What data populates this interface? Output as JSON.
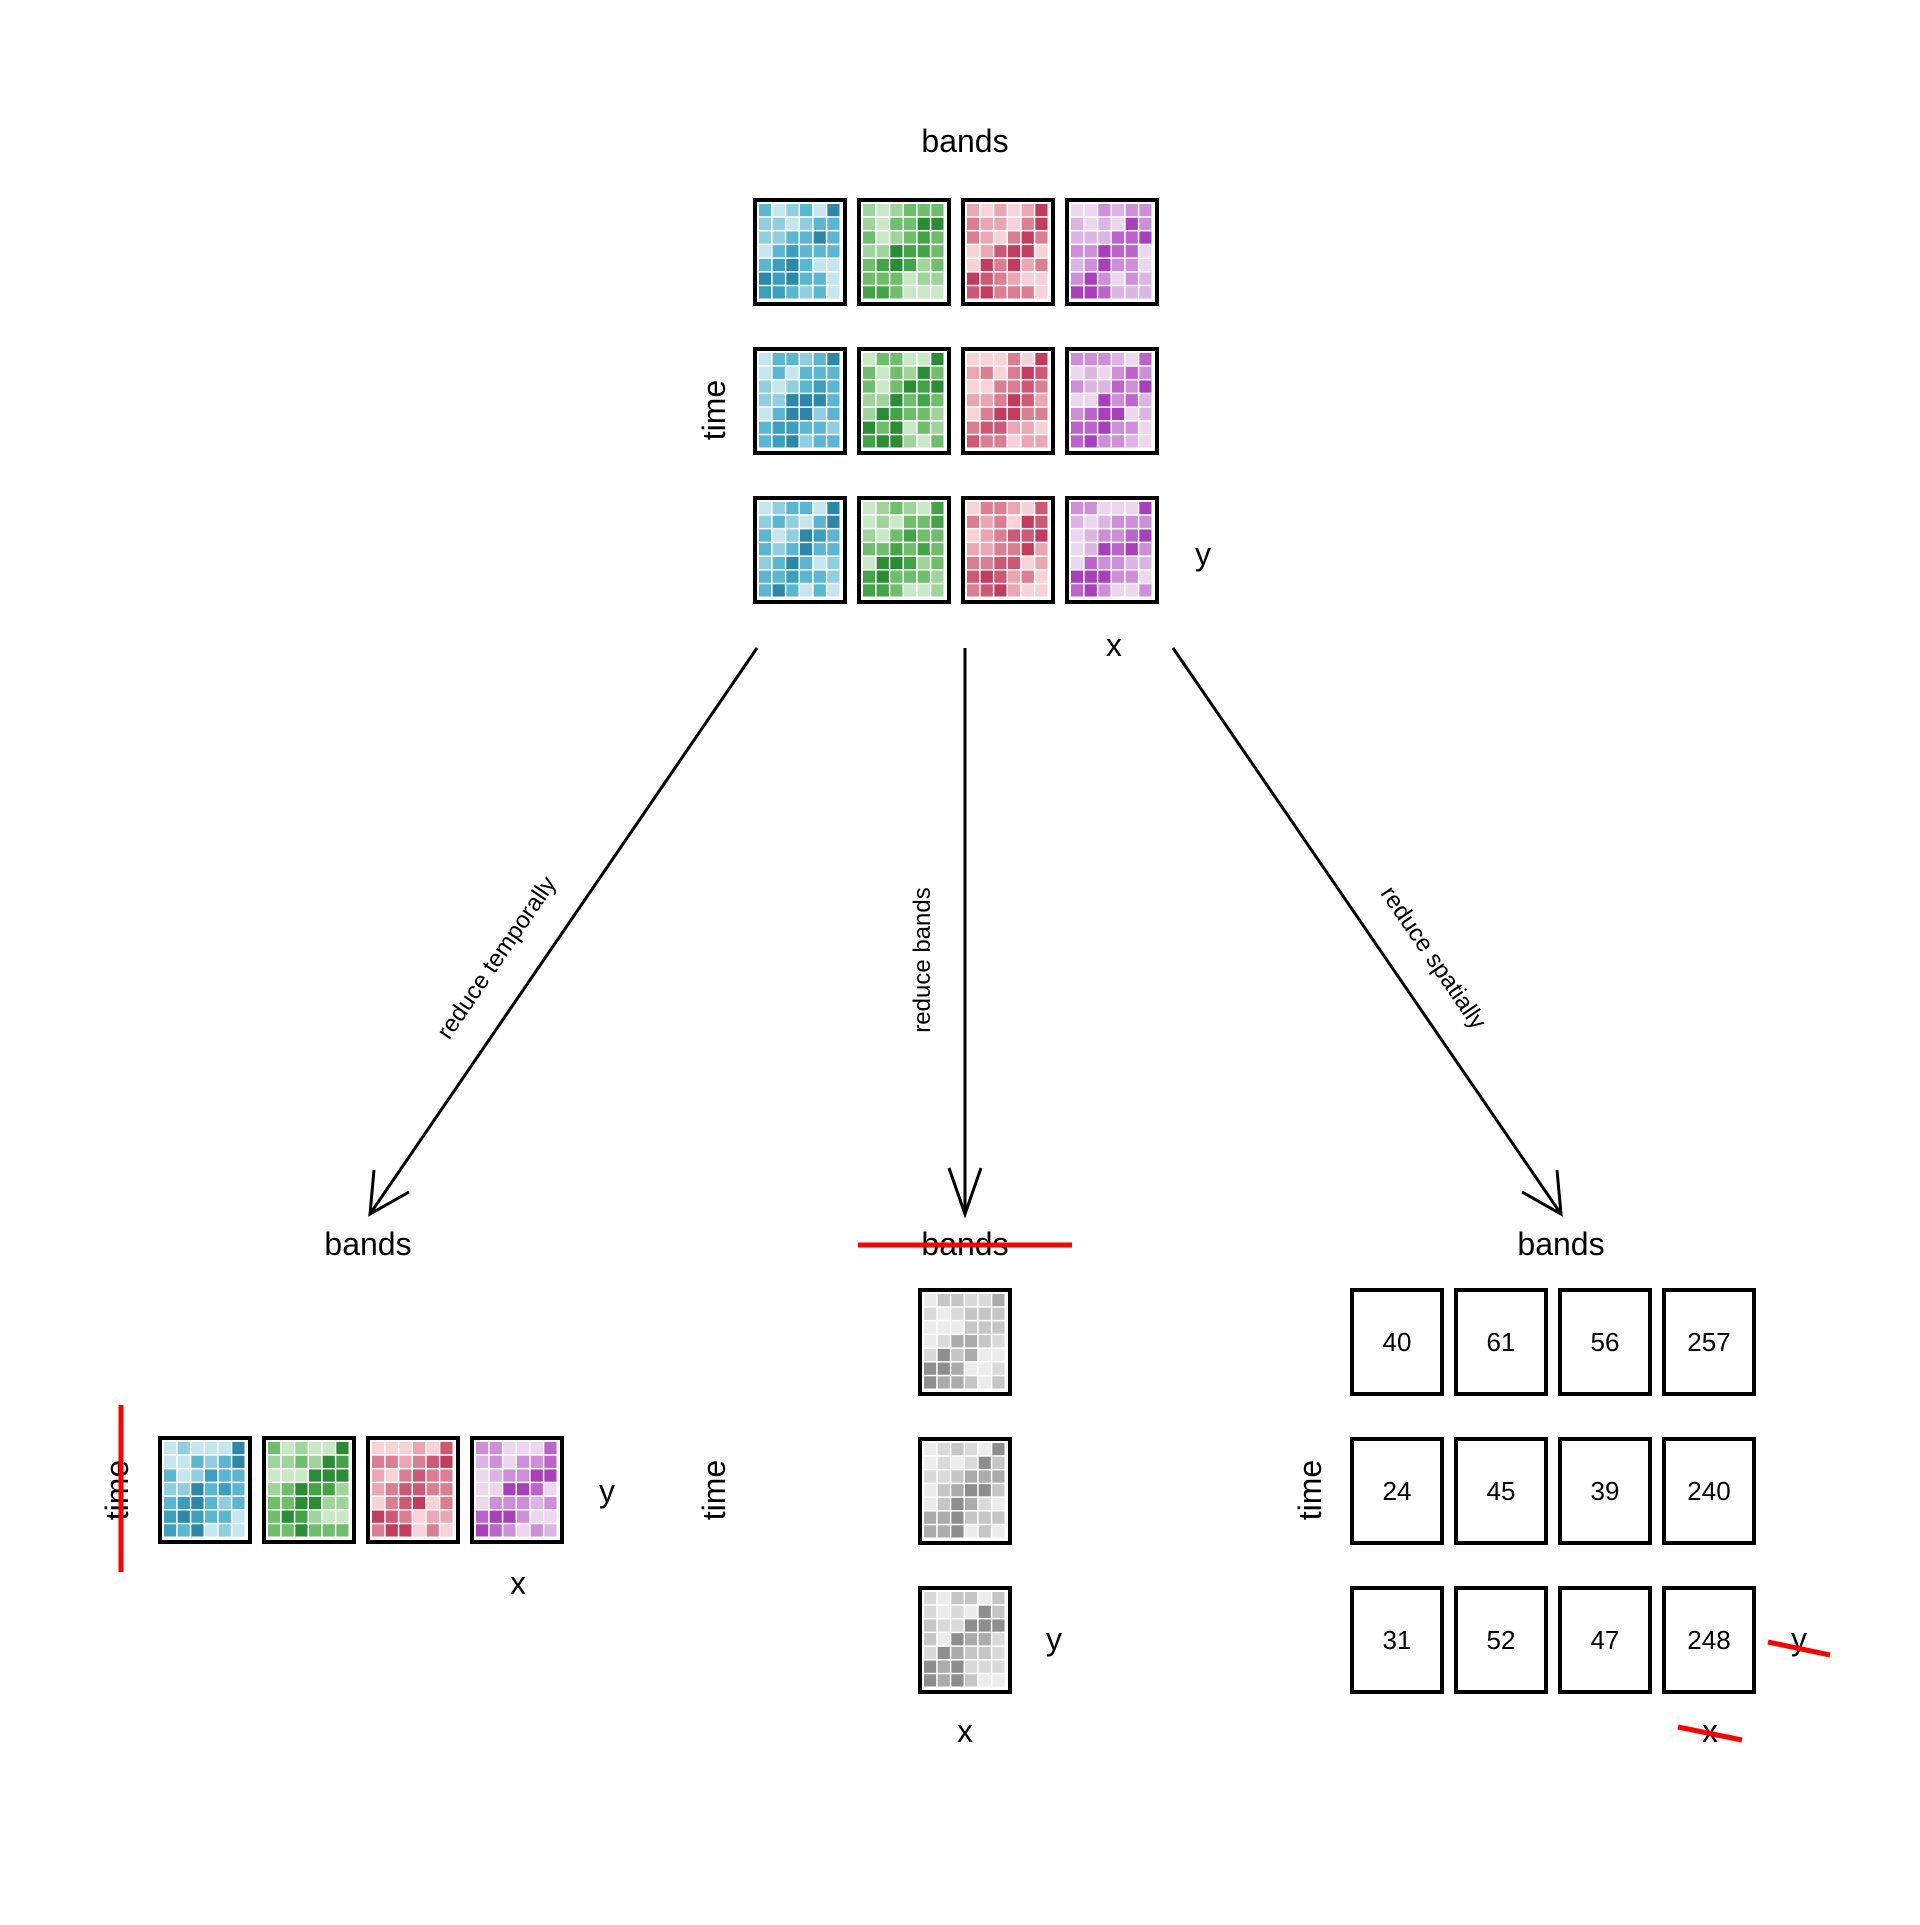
{
  "labels": {
    "bands": "bands",
    "time": "time",
    "x": "x",
    "y": "y"
  },
  "arrows": {
    "temporal": "reduce temporally",
    "bands": "reduce bands",
    "spatial": "reduce spatially"
  },
  "band_palettes": [
    [
      "#c6e6ef",
      "#8fcfe0",
      "#5ab7d2",
      "#399fbd",
      "#2b88a8"
    ],
    [
      "#c9e8c6",
      "#9fd49a",
      "#6fbe6b",
      "#43a447",
      "#2a8c34"
    ],
    [
      "#f7d2d9",
      "#eaa6b3",
      "#dc7e92",
      "#cf5874",
      "#c33c5e"
    ],
    [
      "#ecd7ef",
      "#dcb5e4",
      "#cc8fd8",
      "#bb64cb",
      "#a940bb"
    ]
  ],
  "grey_palette": [
    "#ececec",
    "#dadada",
    "#c6c6c6",
    "#ababab",
    "#8e8e8e"
  ],
  "strike_color": "#ff0000",
  "reduced_values": [
    [
      "40",
      "61",
      "56",
      "257"
    ],
    [
      "24",
      "45",
      "39",
      "240"
    ],
    [
      "31",
      "52",
      "47",
      "248"
    ]
  ]
}
